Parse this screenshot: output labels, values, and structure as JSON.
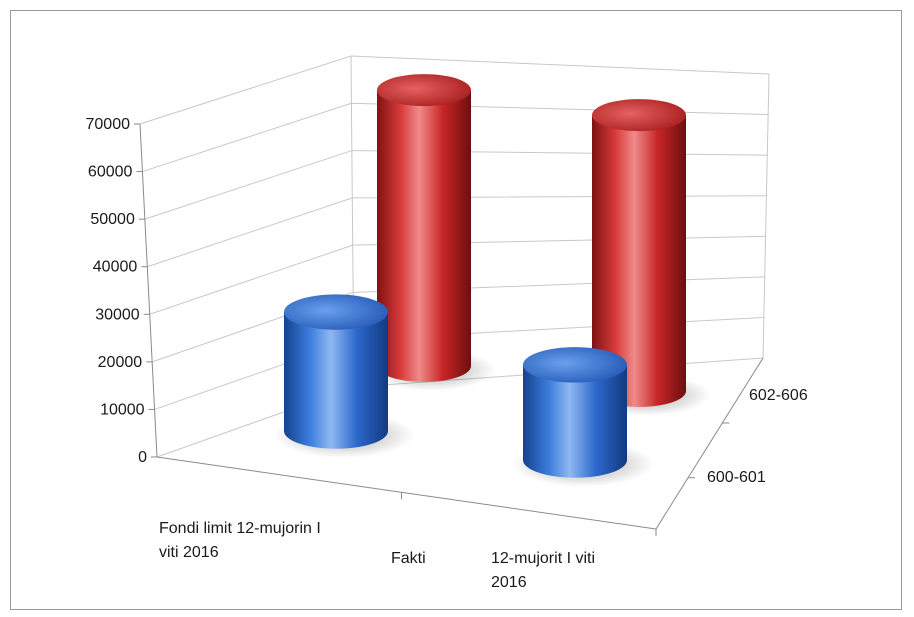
{
  "chart_data": {
    "type": "bar",
    "style": "3d-cylinder",
    "title": "",
    "xlabel": "",
    "ylabel": "",
    "categories": [
      [
        "Fondi limit 12-mujorin I",
        "viti 2016"
      ],
      [
        "Fakti"
      ],
      [
        "12-mujorit I viti",
        "2016"
      ]
    ],
    "depth_labels": [
      "602-606",
      "600-601"
    ],
    "series": [
      {
        "name": "600-601",
        "color": "#2f6bd1",
        "values": [
          25000,
          null,
          20000
        ]
      },
      {
        "name": "602-606",
        "color": "#c62323",
        "values": [
          null,
          58000,
          58000
        ]
      }
    ],
    "ylim": [
      0,
      70000
    ],
    "yticks": [
      "70000",
      "60000",
      "50000",
      "40000",
      "30000",
      "20000",
      "10000",
      "0"
    ],
    "grid": true,
    "legend": "none"
  }
}
